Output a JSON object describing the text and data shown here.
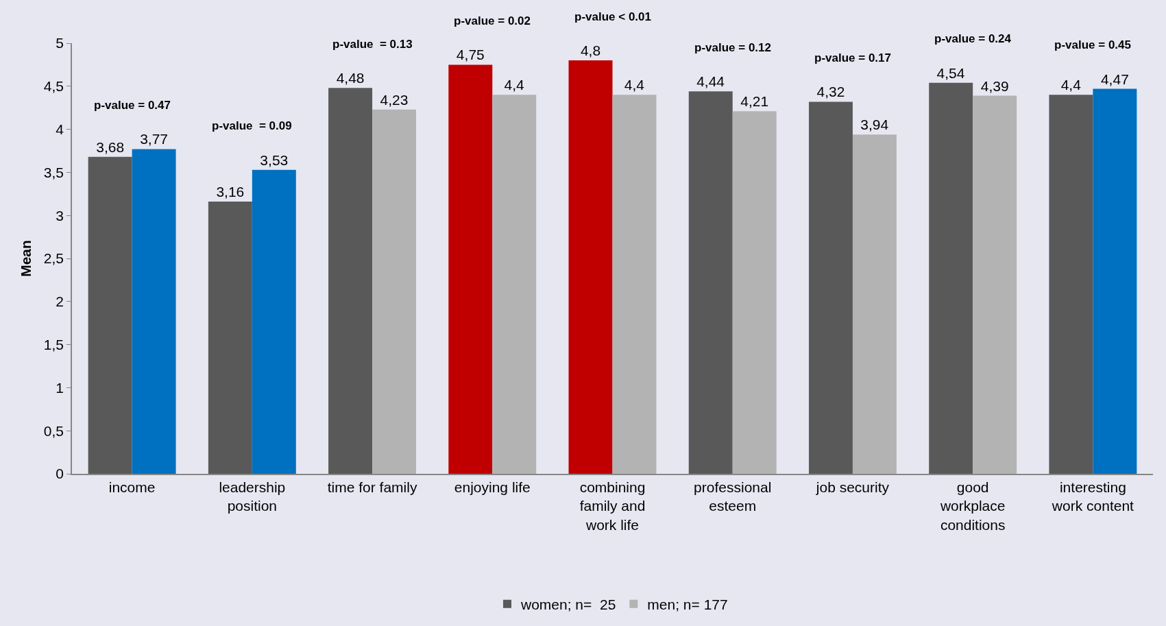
{
  "chart_data": {
    "type": "bar",
    "ylabel": "Mean",
    "categories": [
      "income",
      "leadership\nposition",
      "time for family",
      "enjoying life",
      "combining\nfamily and\nwork life",
      "professional\nesteem",
      "job security",
      "good\nworkplace\nconditions",
      "interesting\nwork content"
    ],
    "series": [
      {
        "name": "women; n=  25",
        "color": "#595959",
        "colors": [
          "#595959",
          "#595959",
          "#595959",
          "#c00000",
          "#c00000",
          "#595959",
          "#595959",
          "#595959",
          "#595959"
        ],
        "values": [
          3.68,
          3.16,
          4.48,
          4.75,
          4.8,
          4.44,
          4.32,
          4.54,
          4.4
        ],
        "value_labels": [
          "3,68",
          "3,16",
          "4,48",
          "4,75",
          "4,8",
          "4,44",
          "4,32",
          "4,54",
          "4,4"
        ]
      },
      {
        "name": "men; n= 177",
        "color": "#b3b3b3",
        "colors": [
          "#0070c0",
          "#0070c0",
          "#b3b3b3",
          "#b3b3b3",
          "#b3b3b3",
          "#b3b3b3",
          "#b3b3b3",
          "#b3b3b3",
          "#0070c0"
        ],
        "values": [
          3.77,
          3.53,
          4.23,
          4.4,
          4.4,
          4.21,
          3.94,
          4.39,
          4.47
        ],
        "value_labels": [
          "3,77",
          "3,53",
          "4,23",
          "4,4",
          "4,4",
          "4,21",
          "3,94",
          "4,39",
          "4,47"
        ]
      }
    ],
    "ylim": [
      0,
      5
    ],
    "yticks": [
      0,
      {
        "value": 0.5,
        "label": "0,5"
      },
      1,
      {
        "value": 1.5,
        "label": "1,5"
      },
      2,
      {
        "value": 2.5,
        "label": "2,5"
      },
      3,
      {
        "value": 3.5,
        "label": "3,5"
      },
      4,
      {
        "value": 4.5,
        "label": "4,5"
      },
      5
    ],
    "annotations": [
      "p-value = 0.47",
      "p-value  = 0.09",
      "p-value  = 0.13",
      "p-value = 0.02",
      "p-value < 0.01",
      "p-value = 0.12",
      "p-value = 0.17",
      "p-value = 0.24",
      "p-value = 0.45"
    ],
    "grid": false,
    "legend": "bottom"
  }
}
